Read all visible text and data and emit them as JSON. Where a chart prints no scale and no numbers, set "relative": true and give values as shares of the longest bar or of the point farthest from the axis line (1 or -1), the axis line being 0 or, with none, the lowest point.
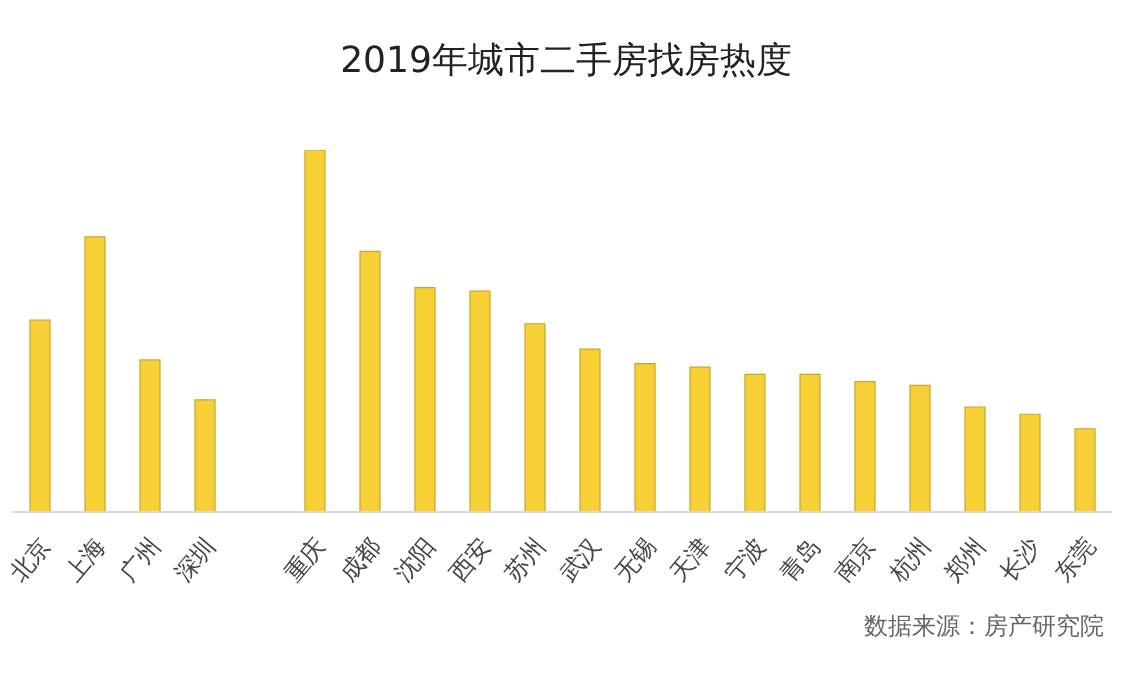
{
  "chart_data": {
    "type": "bar",
    "title": "2019年城市二手房找房热度",
    "categories": [
      "北京",
      "上海",
      "广州",
      "深圳",
      null,
      "重庆",
      "成都",
      "沈阳",
      "西安",
      "苏州",
      "武汉",
      "无锡",
      "天津",
      "宁波",
      "青岛",
      "南京",
      "杭州",
      "郑州",
      "长沙",
      "东莞"
    ],
    "values": [
      0.53,
      0.76,
      0.42,
      0.31,
      null,
      1,
      0.72,
      0.62,
      0.61,
      0.52,
      0.45,
      0.41,
      0.4,
      0.38,
      0.38,
      0.36,
      0.35,
      0.29,
      0.27,
      0.23
    ],
    "color": "#f7d035",
    "relative": true,
    "grid": false,
    "legend": false,
    "annotations": [
      "数据来源：房产研究院"
    ]
  }
}
